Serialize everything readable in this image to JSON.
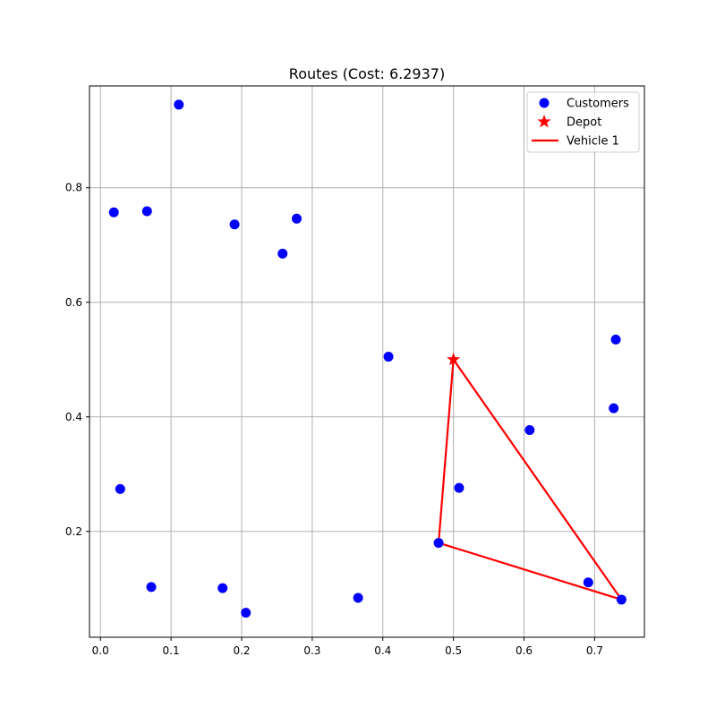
{
  "chart_data": {
    "type": "scatter",
    "title": "Routes (Cost: 6.2937)",
    "xlabel": "",
    "ylabel": "",
    "xlim": [
      -0.0155,
      0.7705
    ],
    "ylim": [
      0.0153,
      0.9777
    ],
    "xticks": [
      0.0,
      0.1,
      0.2,
      0.3,
      0.4,
      0.5,
      0.6,
      0.7
    ],
    "xtick_labels": [
      "0.0",
      "0.1",
      "0.2",
      "0.3",
      "0.4",
      "0.5",
      "0.6",
      "0.7"
    ],
    "yticks": [
      0.2,
      0.4,
      0.6,
      0.8
    ],
    "ytick_labels": [
      "0.2",
      "0.4",
      "0.6",
      "0.8"
    ],
    "grid": true,
    "legend": {
      "position": "top-right",
      "entries": [
        "Customers",
        "Depot",
        "Vehicle 1"
      ]
    },
    "colors": {
      "customers": "#0000ff",
      "depot": "#ff0000",
      "vehicle": "#ff0000",
      "grid": "#b0b0b0"
    },
    "series": [
      {
        "name": "Customers",
        "kind": "scatter",
        "points": [
          [
            0.111,
            0.945
          ],
          [
            0.019,
            0.757
          ],
          [
            0.066,
            0.759
          ],
          [
            0.19,
            0.736
          ],
          [
            0.278,
            0.746
          ],
          [
            0.258,
            0.685
          ],
          [
            0.408,
            0.505
          ],
          [
            0.73,
            0.535
          ],
          [
            0.727,
            0.415
          ],
          [
            0.608,
            0.377
          ],
          [
            0.028,
            0.274
          ],
          [
            0.508,
            0.276
          ],
          [
            0.479,
            0.18
          ],
          [
            0.072,
            0.103
          ],
          [
            0.173,
            0.101
          ],
          [
            0.206,
            0.058
          ],
          [
            0.365,
            0.084
          ],
          [
            0.691,
            0.111
          ],
          [
            0.738,
            0.081
          ]
        ]
      },
      {
        "name": "Depot",
        "kind": "marker",
        "points": [
          [
            0.5,
            0.5
          ]
        ]
      },
      {
        "name": "Vehicle 1",
        "kind": "line",
        "points": [
          [
            0.5,
            0.5
          ],
          [
            0.479,
            0.18
          ],
          [
            0.738,
            0.081
          ],
          [
            0.5,
            0.5
          ]
        ]
      }
    ]
  }
}
